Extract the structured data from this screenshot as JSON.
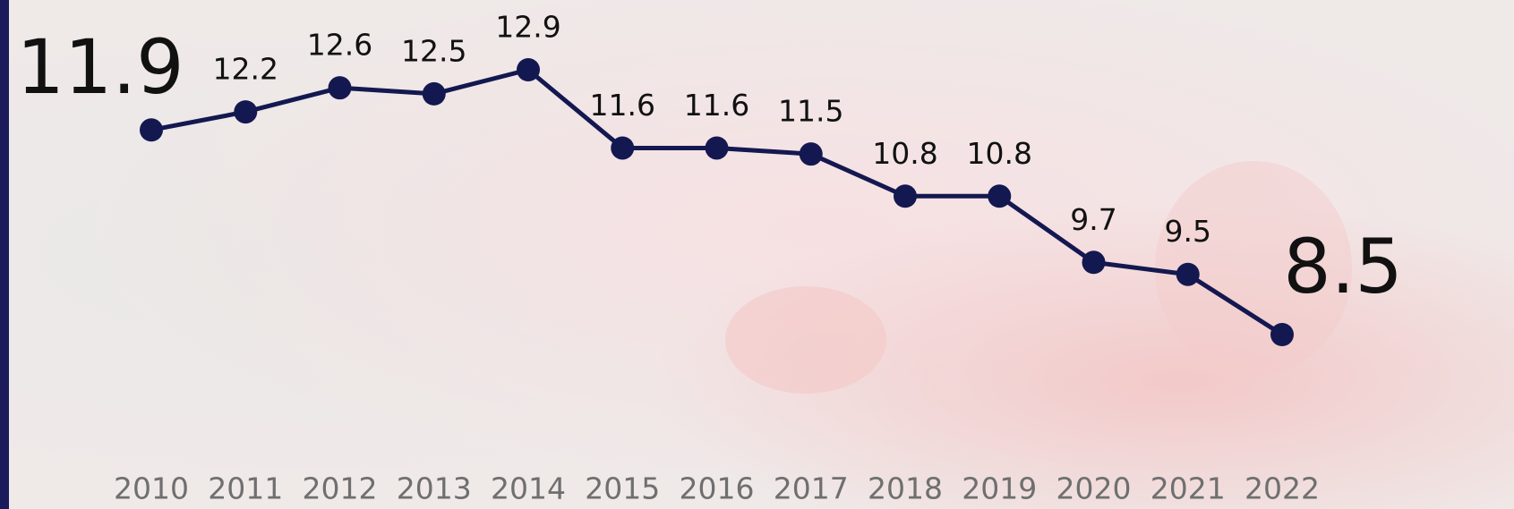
{
  "chart_data": {
    "type": "line",
    "categories": [
      "2010",
      "2011",
      "2012",
      "2013",
      "2014",
      "2015",
      "2016",
      "2017",
      "2018",
      "2019",
      "2020",
      "2021",
      "2022"
    ],
    "values": [
      11.9,
      12.2,
      12.6,
      12.5,
      12.9,
      11.6,
      11.6,
      11.5,
      10.8,
      10.8,
      9.7,
      9.5,
      8.5
    ],
    "color": "#141850"
  }
}
